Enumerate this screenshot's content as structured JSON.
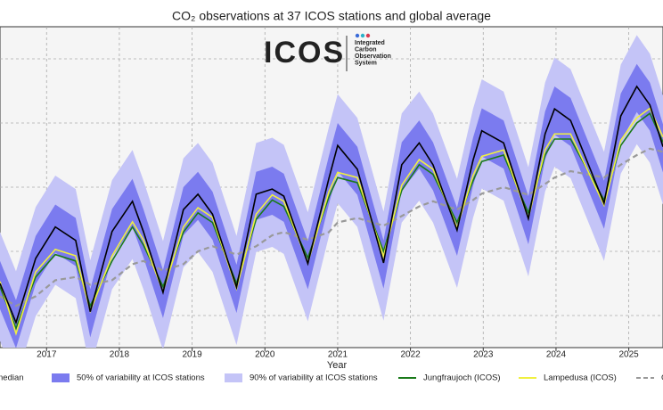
{
  "chart_data": {
    "type": "line",
    "title": "CO₂ observations at 37 ICOS stations and global average",
    "xlabel": "Year",
    "logo": {
      "text": "ICOS",
      "lines": [
        "Integrated",
        "Carbon",
        "Observation",
        "System"
      ]
    },
    "x": [
      2016.36,
      2016.58,
      2016.85,
      2017.12,
      2017.4,
      2017.6,
      2017.9,
      2018.18,
      2018.33,
      2018.6,
      2018.88,
      2019.08,
      2019.28,
      2019.61,
      2019.88,
      2020.1,
      2020.26,
      2020.59,
      2020.88,
      2021.0,
      2021.27,
      2021.63,
      2021.88,
      2022.12,
      2022.31,
      2022.64,
      2022.86,
      2022.98,
      2023.28,
      2023.62,
      2023.85,
      2023.98,
      2024.2,
      2024.66,
      2024.89,
      2025.11,
      2025.29,
      2025.47
    ],
    "xlim": [
      2016.36,
      2025.47
    ],
    "xticks": [
      2017,
      2018,
      2019,
      2020,
      2021,
      2022,
      2023,
      2024,
      2025
    ],
    "ylim": [
      395,
      445
    ],
    "yticks": [
      400,
      410,
      420,
      430,
      440
    ],
    "grid": true,
    "series": [
      {
        "name": "x median",
        "color": "#000000",
        "kind": "line",
        "values": [
          405.0,
          398.9,
          408.9,
          413.8,
          411.7,
          400.6,
          413.1,
          417.8,
          413.1,
          403.6,
          416.5,
          418.9,
          415.8,
          404.4,
          418.9,
          419.7,
          418.6,
          408.1,
          421.4,
          426.5,
          422.8,
          408.2,
          423.5,
          426.9,
          423.5,
          413.3,
          424.2,
          428.8,
          426.9,
          415.1,
          428.3,
          432.2,
          430.4,
          417.5,
          431.1,
          435.7,
          432.8,
          426.3
        ]
      },
      {
        "name": "50% of variability at ICOS stations",
        "color": "#7b7bef",
        "kind": "band",
        "low": [
          401.0,
          394.9,
          404.9,
          409.8,
          407.7,
          396.6,
          409.1,
          413.8,
          409.1,
          399.6,
          412.5,
          414.9,
          411.8,
          400.4,
          414.9,
          415.7,
          414.6,
          404.1,
          417.4,
          422.5,
          418.8,
          404.2,
          419.5,
          422.9,
          419.5,
          409.3,
          420.2,
          424.8,
          422.9,
          411.1,
          424.3,
          428.2,
          426.4,
          413.5,
          427.1,
          431.7,
          428.8,
          422.3
        ],
        "high": [
          408.5,
          402.4,
          412.4,
          417.3,
          415.2,
          404.1,
          416.6,
          421.3,
          416.6,
          407.1,
          420.0,
          422.4,
          419.3,
          407.9,
          422.4,
          423.2,
          422.1,
          411.6,
          424.9,
          430.0,
          426.3,
          411.7,
          427.0,
          430.4,
          427.0,
          416.8,
          427.7,
          432.3,
          430.4,
          418.6,
          431.8,
          435.7,
          433.9,
          421.0,
          434.6,
          439.2,
          436.3,
          429.8
        ]
      },
      {
        "name": "90% of variability at ICOS stations",
        "color": "#c4c4f7",
        "kind": "band",
        "low": [
          396.0,
          389.9,
          399.9,
          404.8,
          402.7,
          391.6,
          404.1,
          408.8,
          404.1,
          394.6,
          407.5,
          409.9,
          406.8,
          395.4,
          409.9,
          410.7,
          409.6,
          399.1,
          412.4,
          417.5,
          413.8,
          399.2,
          414.5,
          417.9,
          414.5,
          404.3,
          415.2,
          419.8,
          417.9,
          406.1,
          419.3,
          423.2,
          421.4,
          408.5,
          422.1,
          426.7,
          423.8,
          417.3
        ],
        "high": [
          413.0,
          406.9,
          416.9,
          421.8,
          419.7,
          408.6,
          421.1,
          425.8,
          421.1,
          411.6,
          424.5,
          426.9,
          423.8,
          412.4,
          426.9,
          427.7,
          426.6,
          416.1,
          429.4,
          434.5,
          430.8,
          416.2,
          431.5,
          434.9,
          431.5,
          421.3,
          432.2,
          436.8,
          434.9,
          423.1,
          436.3,
          440.2,
          438.4,
          425.5,
          439.1,
          443.7,
          440.8,
          434.3
        ]
      },
      {
        "name": "Jungfraujoch (ICOS)",
        "color": "#1a7a1a",
        "kind": "line",
        "values": [
          404.5,
          398.0,
          406.0,
          409.5,
          408.5,
          401.5,
          408.5,
          413.8,
          411.0,
          404.5,
          413.0,
          416.0,
          414.5,
          405.0,
          415.0,
          418.0,
          417.0,
          409.0,
          418.5,
          421.5,
          420.7,
          410.0,
          419.5,
          423.5,
          422.0,
          414.5,
          421.0,
          424.0,
          425.0,
          416.0,
          425.0,
          427.5,
          427.5,
          418.0,
          426.5,
          430.0,
          431.5,
          427.0
        ]
      },
      {
        "name": "Lampedusa (ICOS)",
        "color": "#f0f040",
        "kind": "line",
        "values": [
          405.3,
          397.2,
          406.8,
          410.3,
          409.3,
          400.7,
          409.3,
          414.6,
          411.8,
          403.7,
          413.8,
          416.8,
          415.3,
          404.2,
          415.8,
          418.8,
          417.8,
          408.2,
          419.3,
          422.3,
          421.5,
          409.2,
          420.3,
          424.3,
          422.8,
          413.7,
          421.8,
          424.8,
          425.8,
          415.2,
          425.8,
          428.3,
          428.3,
          417.2,
          427.3,
          430.8,
          432.3,
          427.8
        ]
      },
      {
        "name": "G",
        "color": "#999999",
        "kind": "line",
        "dashed": true,
        "values": [
          403.0,
          401.5,
          403.0,
          405.5,
          406.0,
          404.8,
          405.5,
          408.0,
          408.5,
          407.0,
          408.0,
          410.0,
          410.8,
          409.5,
          410.8,
          412.5,
          413.0,
          411.8,
          413.0,
          414.5,
          415.2,
          414.0,
          415.5,
          417.0,
          417.8,
          416.5,
          418.0,
          419.0,
          420.0,
          418.8,
          420.5,
          421.5,
          422.5,
          421.5,
          423.5,
          425.0,
          426.0,
          425.5
        ]
      }
    ]
  }
}
